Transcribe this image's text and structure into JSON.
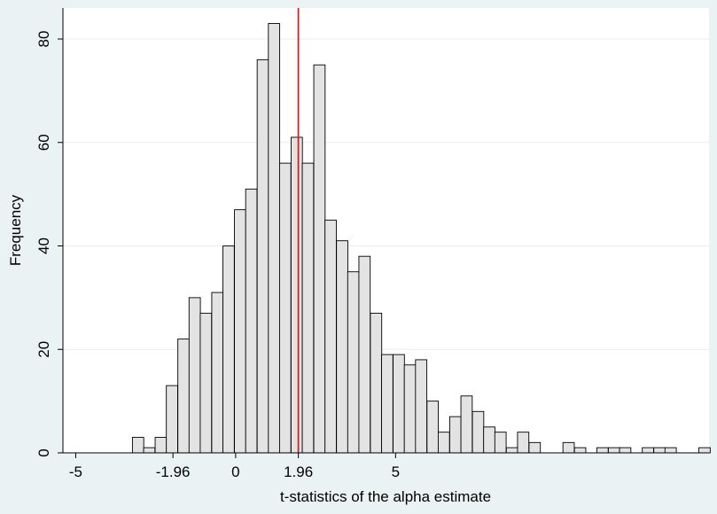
{
  "chart_data": {
    "type": "bar",
    "title": "",
    "xlabel": "t-statistics of the alpha estimate",
    "ylabel": "Frequency",
    "xlim": [
      -5.4,
      14.8
    ],
    "ylim": [
      0,
      86
    ],
    "bin_width": 0.354,
    "grid": "horizontal",
    "legend": "none",
    "x_ticks": [
      {
        "value": -5,
        "label": "-5",
        "highlight": false
      },
      {
        "value": -1.96,
        "label": "-1.96",
        "highlight": false
      },
      {
        "value": 0,
        "label": "0",
        "highlight": false
      },
      {
        "value": 1.96,
        "label": "1.96",
        "highlight": true
      },
      {
        "value": 5,
        "label": "5",
        "highlight": false
      }
    ],
    "y_ticks": [
      0,
      20,
      40,
      60,
      80
    ],
    "reference_line": {
      "x": 1.96,
      "color": "#d62020"
    },
    "bar_fill": "#e3e3e3",
    "bar_stroke": "#000000",
    "bins": [
      {
        "x": -3.05,
        "count": 3
      },
      {
        "x": -2.7,
        "count": 1
      },
      {
        "x": -2.34,
        "count": 3
      },
      {
        "x": -1.99,
        "count": 13
      },
      {
        "x": -1.63,
        "count": 22
      },
      {
        "x": -1.28,
        "count": 30
      },
      {
        "x": -0.93,
        "count": 27
      },
      {
        "x": -0.57,
        "count": 31
      },
      {
        "x": -0.22,
        "count": 40
      },
      {
        "x": 0.14,
        "count": 47
      },
      {
        "x": 0.49,
        "count": 51
      },
      {
        "x": 0.85,
        "count": 76
      },
      {
        "x": 1.2,
        "count": 83
      },
      {
        "x": 1.55,
        "count": 56
      },
      {
        "x": 1.91,
        "count": 61
      },
      {
        "x": 2.26,
        "count": 56
      },
      {
        "x": 2.62,
        "count": 75
      },
      {
        "x": 2.97,
        "count": 45
      },
      {
        "x": 3.33,
        "count": 41
      },
      {
        "x": 3.68,
        "count": 35
      },
      {
        "x": 4.03,
        "count": 38
      },
      {
        "x": 4.39,
        "count": 27
      },
      {
        "x": 4.74,
        "count": 19
      },
      {
        "x": 5.1,
        "count": 19
      },
      {
        "x": 5.45,
        "count": 17
      },
      {
        "x": 5.8,
        "count": 18
      },
      {
        "x": 6.16,
        "count": 10
      },
      {
        "x": 6.51,
        "count": 4
      },
      {
        "x": 6.87,
        "count": 7
      },
      {
        "x": 7.22,
        "count": 11
      },
      {
        "x": 7.58,
        "count": 8
      },
      {
        "x": 7.93,
        "count": 5
      },
      {
        "x": 8.28,
        "count": 4
      },
      {
        "x": 8.64,
        "count": 1
      },
      {
        "x": 8.99,
        "count": 4
      },
      {
        "x": 9.35,
        "count": 2
      },
      {
        "x": 10.41,
        "count": 2
      },
      {
        "x": 10.77,
        "count": 1
      },
      {
        "x": 11.47,
        "count": 1
      },
      {
        "x": 11.83,
        "count": 1
      },
      {
        "x": 12.18,
        "count": 1
      },
      {
        "x": 12.89,
        "count": 1
      },
      {
        "x": 13.25,
        "count": 1
      },
      {
        "x": 13.6,
        "count": 1
      },
      {
        "x": 14.66,
        "count": 1
      }
    ]
  }
}
